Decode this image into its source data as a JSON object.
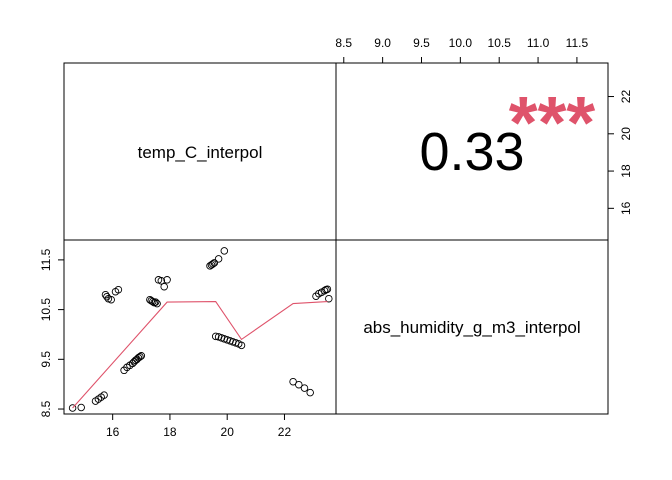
{
  "chart_data": {
    "type": "scatter",
    "variables": [
      "temp_C_interpol",
      "abs_humidity_g_m3_interpol"
    ],
    "correlation": {
      "value": "0.33",
      "stars": "***"
    },
    "x_axis": {
      "label": "temp_C_interpol",
      "range": [
        14.3,
        23.8
      ],
      "ticks": [
        "16",
        "18",
        "20",
        "22"
      ],
      "tick_values": [
        16,
        18,
        20,
        22
      ]
    },
    "y_axis": {
      "label": "abs_humidity_g_m3_interpol",
      "range": [
        8.4,
        11.9
      ],
      "ticks": [
        "8.5",
        "9.5",
        "10.5",
        "11.5"
      ],
      "tick_values": [
        8.5,
        9.5,
        10.5,
        11.5
      ]
    },
    "top_axis": {
      "ticks": [
        "8.5",
        "9.0",
        "9.5",
        "10.0",
        "10.5",
        "11.0",
        "11.5"
      ],
      "tick_values": [
        8.5,
        9.0,
        9.5,
        10.0,
        10.5,
        11.0,
        11.5
      ],
      "range": [
        8.4,
        11.9
      ]
    },
    "right_axis": {
      "ticks": [
        "16",
        "18",
        "20",
        "22"
      ],
      "tick_values": [
        16,
        18,
        20,
        22
      ],
      "range": [
        14.3,
        23.8
      ]
    },
    "points": [
      [
        14.6,
        8.52
      ],
      [
        14.9,
        8.53
      ],
      [
        15.4,
        8.66
      ],
      [
        15.5,
        8.7
      ],
      [
        15.6,
        8.74
      ],
      [
        15.7,
        8.78
      ],
      [
        15.8,
        10.76
      ],
      [
        15.75,
        10.8
      ],
      [
        15.85,
        10.72
      ],
      [
        15.95,
        10.7
      ],
      [
        16.1,
        10.86
      ],
      [
        16.2,
        10.9
      ],
      [
        16.4,
        9.28
      ],
      [
        16.5,
        9.34
      ],
      [
        16.6,
        9.38
      ],
      [
        16.7,
        9.42
      ],
      [
        16.75,
        9.45
      ],
      [
        16.8,
        9.48
      ],
      [
        16.85,
        9.5
      ],
      [
        16.9,
        9.53
      ],
      [
        16.95,
        9.55
      ],
      [
        17.0,
        9.57
      ],
      [
        17.3,
        10.7
      ],
      [
        17.35,
        10.68
      ],
      [
        17.4,
        10.66
      ],
      [
        17.45,
        10.64
      ],
      [
        17.5,
        10.65
      ],
      [
        17.55,
        10.62
      ],
      [
        17.6,
        11.1
      ],
      [
        17.7,
        11.08
      ],
      [
        17.8,
        10.96
      ],
      [
        17.9,
        11.1
      ],
      [
        19.4,
        11.38
      ],
      [
        19.45,
        11.4
      ],
      [
        19.5,
        11.42
      ],
      [
        19.55,
        11.44
      ],
      [
        19.7,
        11.52
      ],
      [
        19.9,
        11.68
      ],
      [
        19.6,
        9.96
      ],
      [
        19.7,
        9.95
      ],
      [
        19.8,
        9.93
      ],
      [
        19.9,
        9.91
      ],
      [
        20.0,
        9.89
      ],
      [
        20.1,
        9.87
      ],
      [
        20.2,
        9.85
      ],
      [
        20.3,
        9.83
      ],
      [
        20.4,
        9.81
      ],
      [
        20.5,
        9.78
      ],
      [
        22.3,
        9.05
      ],
      [
        22.5,
        8.99
      ],
      [
        22.7,
        8.92
      ],
      [
        22.9,
        8.83
      ],
      [
        23.1,
        10.77
      ],
      [
        23.2,
        10.82
      ],
      [
        23.3,
        10.85
      ],
      [
        23.4,
        10.88
      ],
      [
        23.45,
        10.9
      ],
      [
        23.5,
        10.91
      ],
      [
        23.55,
        10.72
      ]
    ],
    "smooth_line": [
      [
        14.6,
        8.52
      ],
      [
        17.9,
        10.65
      ],
      [
        19.6,
        10.66
      ],
      [
        20.5,
        9.9
      ],
      [
        22.3,
        10.62
      ],
      [
        23.5,
        10.66
      ]
    ],
    "colors": {
      "points": "#000000",
      "smooth": "#DF536B",
      "stars": "#DF536B",
      "frame": "#000000"
    }
  }
}
